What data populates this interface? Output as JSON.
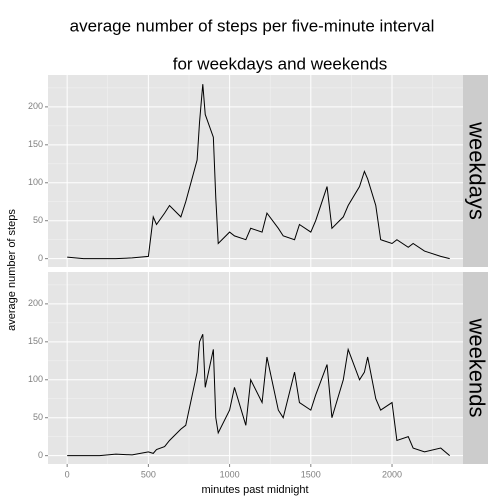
{
  "chart_data": {
    "type": "line",
    "title": "average number of steps per five-minute interval",
    "subtitle": "for weekdays and weekends",
    "x_label": "minutes past midnight",
    "y_label": "average number of steps",
    "x": [
      0,
      100,
      200,
      300,
      400,
      500,
      530,
      550,
      600,
      630,
      700,
      730,
      800,
      815,
      835,
      850,
      900,
      915,
      930,
      1000,
      1030,
      1100,
      1130,
      1200,
      1230,
      1300,
      1330,
      1400,
      1430,
      1500,
      1530,
      1600,
      1630,
      1700,
      1730,
      1800,
      1830,
      1850,
      1900,
      1930,
      2000,
      2030,
      2100,
      2130,
      2200,
      2300,
      2355
    ],
    "series": [
      {
        "name": "weekdays",
        "color": "#000000",
        "values": [
          2,
          0,
          0,
          0,
          1,
          3,
          55,
          45,
          60,
          70,
          55,
          75,
          130,
          180,
          230,
          190,
          160,
          80,
          20,
          35,
          30,
          25,
          40,
          35,
          60,
          40,
          30,
          25,
          45,
          35,
          50,
          95,
          40,
          55,
          70,
          95,
          115,
          105,
          70,
          25,
          20,
          25,
          15,
          20,
          10,
          3,
          0
        ]
      },
      {
        "name": "weekends",
        "color": "#000000",
        "values": [
          0,
          0,
          0,
          2,
          1,
          5,
          3,
          8,
          12,
          20,
          35,
          40,
          110,
          150,
          160,
          90,
          140,
          50,
          30,
          60,
          90,
          40,
          100,
          70,
          130,
          60,
          50,
          110,
          70,
          60,
          80,
          120,
          50,
          100,
          140,
          100,
          110,
          130,
          75,
          60,
          70,
          20,
          25,
          10,
          5,
          10,
          0
        ]
      }
    ],
    "xlim": [
      -118,
      2437
    ],
    "xticks": [
      0,
      500,
      1000,
      1500,
      2000
    ],
    "xminor": [
      250,
      750,
      1250,
      1750,
      2250
    ],
    "ylim": [
      -11,
      242
    ],
    "yticks": [
      0,
      50,
      100,
      150,
      200
    ],
    "yminor": [
      25,
      75,
      125,
      175,
      225
    ],
    "grid": true
  }
}
